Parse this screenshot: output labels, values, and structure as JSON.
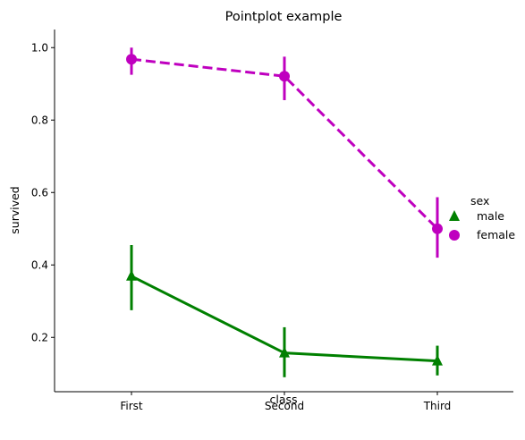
{
  "chart_data": {
    "type": "pointplot",
    "title": "Pointplot example",
    "xlabel": "class",
    "ylabel": "survived",
    "categories": [
      "First",
      "Second",
      "Third"
    ],
    "ylim": [
      0.05,
      1.05
    ],
    "yticks": [
      0.2,
      0.4,
      0.6,
      0.8,
      1.0
    ],
    "ytick_labels": [
      "0.2",
      "0.4",
      "0.6",
      "0.8",
      "1.0"
    ],
    "grid": false,
    "legend": {
      "title": "sex",
      "placement": "right"
    },
    "series": [
      {
        "name": "male",
        "color": "#008000",
        "marker": "triangle",
        "linestyle": "solid",
        "values": [
          0.369,
          0.157,
          0.135
        ],
        "ci_low": [
          0.275,
          0.09,
          0.095
        ],
        "ci_high": [
          0.455,
          0.228,
          0.177
        ]
      },
      {
        "name": "female",
        "color": "#bf00bf",
        "marker": "circle",
        "linestyle": "dashed",
        "values": [
          0.968,
          0.921,
          0.5
        ],
        "ci_low": [
          0.925,
          0.855,
          0.42
        ],
        "ci_high": [
          1.0,
          0.975,
          0.587
        ]
      }
    ]
  }
}
